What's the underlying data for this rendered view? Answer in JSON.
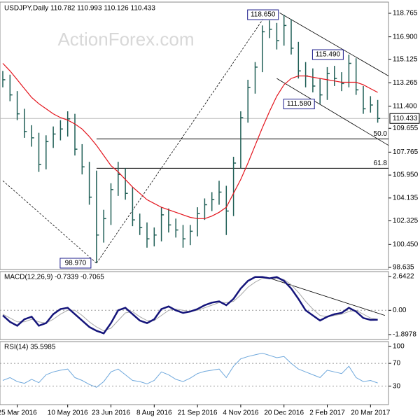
{
  "chart_data": [
    {
      "type": "ohlc",
      "title": "USDJPY,Daily  110.782 110.993 110.126 110.433",
      "watermark": "ActionForex.com",
      "color": "#1e5e55",
      "categories": [
        null,
        null,
        "25 Mar 2016",
        null,
        null,
        null,
        null,
        null,
        null,
        "10 May 2016",
        null,
        null,
        null,
        null,
        null,
        "23 Jun 2016",
        null,
        null,
        null,
        null,
        null,
        "8 Aug 2016",
        null,
        null,
        null,
        null,
        null,
        "21 Sep 2016",
        null,
        null,
        null,
        null,
        null,
        "4 Nov 2016",
        null,
        null,
        null,
        null,
        null,
        "20 Dec 2016",
        null,
        null,
        null,
        null,
        null,
        "2 Feb 2017",
        null,
        null,
        null,
        null,
        null,
        "20 Mar 2017",
        null
      ],
      "high": [
        114.2,
        113.9,
        112.6,
        111.2,
        109.9,
        109.3,
        109.1,
        109.8,
        110.3,
        111.0,
        110.8,
        108.4,
        107.0,
        106.3,
        103.2,
        105.3,
        107.0,
        106.5,
        105.0,
        102.9,
        102.2,
        101.8,
        103.4,
        103.3,
        102.5,
        102.0,
        102.0,
        103.4,
        104.1,
        104.6,
        105.5,
        105.1,
        107.4,
        111.0,
        113.5,
        114.9,
        117.8,
        118.2,
        118.0,
        118.65,
        118.3,
        116.5,
        114.9,
        114.4,
        113.6,
        114.5,
        114.6,
        114.1,
        115.49,
        115.2,
        113.0,
        112.2,
        111.9
      ],
      "low": [
        112.9,
        111.8,
        110.3,
        108.9,
        108.2,
        106.2,
        106.4,
        108.1,
        108.7,
        109.0,
        107.5,
        106.0,
        103.6,
        98.97,
        100.6,
        102.0,
        104.3,
        104.0,
        101.9,
        101.2,
        100.2,
        100.3,
        100.7,
        101.4,
        101.0,
        100.2,
        100.4,
        101.1,
        102.4,
        103.1,
        103.6,
        101.2,
        102.7,
        106.5,
        110.1,
        112.4,
        114.1,
        116.8,
        115.9,
        116.2,
        115.5,
        113.6,
        112.9,
        112.5,
        111.58,
        111.9,
        113.0,
        112.6,
        112.9,
        112.3,
        110.8,
        110.9,
        110.1
      ],
      "close": [
        113.5,
        112.3,
        110.8,
        109.4,
        108.9,
        106.8,
        108.6,
        109.2,
        109.6,
        110.4,
        108.0,
        106.6,
        104.2,
        101.2,
        102.5,
        104.8,
        106.0,
        104.5,
        102.4,
        101.8,
        100.9,
        101.2,
        102.8,
        102.0,
        101.6,
        100.9,
        101.5,
        102.9,
        103.6,
        104.0,
        104.6,
        103.1,
        106.9,
        110.5,
        112.9,
        114.5,
        117.3,
        117.5,
        116.6,
        117.8,
        116.0,
        114.2,
        113.8,
        113.0,
        112.3,
        114.0,
        113.6,
        113.2,
        114.8,
        112.7,
        111.2,
        111.5,
        110.433
      ],
      "overlays": [
        {
          "color": "#e3141c",
          "values": [
            114.8,
            114.2,
            113.5,
            112.8,
            112.1,
            111.6,
            111.2,
            110.8,
            110.5,
            110.3,
            110.0,
            109.6,
            109.0,
            108.3,
            107.5,
            106.7,
            106.2,
            105.6,
            105.0,
            104.5,
            104.0,
            103.7,
            103.4,
            103.2,
            103.0,
            102.8,
            102.6,
            102.5,
            102.5,
            102.7,
            103.0,
            103.4,
            104.5,
            105.6,
            106.9,
            108.3,
            109.7,
            111.0,
            112.2,
            113.1,
            113.6,
            113.8,
            113.8,
            113.7,
            113.6,
            113.5,
            113.4,
            113.3,
            113.3,
            113.3,
            113.1,
            112.8,
            112.5
          ]
        }
      ],
      "last_price": 110.433,
      "annotations": [
        {
          "label": "118.650",
          "x": 39,
          "value": 118.65
        },
        {
          "label": "115.490",
          "x": 48,
          "value": 115.49
        },
        {
          "label": "111.580",
          "x": 44,
          "value": 111.58
        },
        {
          "label": "98.970",
          "x": 13,
          "value": 98.97
        }
      ],
      "fib_levels": [
        {
          "label": "50.0",
          "value": 108.81,
          "from": 13
        },
        {
          "label": "61.8",
          "value": 106.49,
          "from": 13
        }
      ],
      "trendlines": [
        {
          "x": [
            0,
            13
          ],
          "y": [
            105.5,
            98.97
          ],
          "dashed": true
        },
        {
          "x": [
            13,
            36.5
          ],
          "y": [
            98.97,
            118.65
          ],
          "dashed": true
        },
        {
          "x": [
            38.4,
            53.5
          ],
          "y": [
            118.8,
            113.8
          ],
          "dashed": false
        },
        {
          "x": [
            38,
            53.5
          ],
          "y": [
            113.6,
            108.3
          ],
          "dashed": false
        }
      ],
      "ylim": [
        98.47,
        119.54
      ],
      "yticks": [
        118.765,
        {
          "value": 116.9,
          "label": "116.900"
        },
        115.125,
        113.265,
        {
          "value": 111.4,
          "label": "111.400"
        },
        109.655,
        107.765,
        {
          "value": 105.95,
          "label": "105.950"
        },
        104.135,
        102.325,
        {
          "value": 100.45,
          "label": "100.450"
        },
        98.635
      ]
    },
    {
      "type": "line",
      "title": "MACD(12,26,9) -0.7339 -0.7065",
      "series": [
        {
          "color": "#14147a",
          "width": 2.5,
          "values": [
            -0.4,
            -0.9,
            -1.2,
            -0.7,
            -0.5,
            -1.2,
            -1.0,
            -0.3,
            0.1,
            0.2,
            -0.3,
            -0.8,
            -1.3,
            -1.6,
            -1.8,
            -1.0,
            0.0,
            0.2,
            -0.3,
            -0.8,
            -1.0,
            -0.7,
            0.1,
            0.3,
            0.0,
            -0.2,
            -0.1,
            0.1,
            0.4,
            0.6,
            0.7,
            0.4,
            0.9,
            1.7,
            2.3,
            2.6,
            2.6,
            2.5,
            2.6,
            2.3,
            1.7,
            0.9,
            0.0,
            -0.4,
            -0.8,
            -0.5,
            -0.3,
            -0.2,
            0.2,
            -0.1,
            -0.6,
            -0.75,
            -0.7339
          ]
        },
        {
          "color": "#a8a8a8",
          "width": 1,
          "values": [
            -0.3,
            -0.6,
            -0.9,
            -0.9,
            -0.7,
            -0.9,
            -1.0,
            -0.7,
            -0.3,
            0.0,
            0.0,
            -0.4,
            -0.9,
            -1.3,
            -1.6,
            -1.4,
            -0.8,
            -0.2,
            -0.1,
            -0.5,
            -0.8,
            -0.8,
            -0.4,
            0.0,
            0.1,
            0.0,
            -0.1,
            0.0,
            0.2,
            0.4,
            0.6,
            0.6,
            0.7,
            1.2,
            1.8,
            2.2,
            2.5,
            2.5,
            2.5,
            2.4,
            2.0,
            1.4,
            0.7,
            0.1,
            -0.4,
            -0.5,
            -0.4,
            -0.3,
            -0.1,
            0.0,
            -0.3,
            -0.6,
            -0.7065
          ]
        }
      ],
      "trendlines": [
        {
          "x": [
            36.5,
            53
          ],
          "y": [
            2.6,
            -0.4
          ],
          "dashed": false
        }
      ],
      "ylim": [
        -2.28,
        2.97
      ],
      "yticks": [
        2.6422,
        {
          "value": 0,
          "label": "0.00"
        },
        -1.8978
      ],
      "grid_ticks": [
        1
      ]
    },
    {
      "type": "line",
      "title": "RSI(14) 35.5985",
      "series": [
        {
          "color": "#6fa8dc",
          "width": 1,
          "values": [
            40,
            45,
            38,
            35,
            42,
            36,
            50,
            55,
            58,
            60,
            45,
            40,
            33,
            28,
            38,
            55,
            60,
            50,
            40,
            38,
            34,
            40,
            55,
            50,
            42,
            38,
            44,
            52,
            56,
            58,
            60,
            45,
            65,
            78,
            82,
            85,
            88,
            84,
            80,
            82,
            70,
            60,
            55,
            50,
            45,
            58,
            55,
            52,
            65,
            45,
            38,
            40,
            35.5985
          ]
        }
      ],
      "ylim": [
        -1.2,
        107
      ],
      "yticks": [
        100,
        70,
        30
      ],
      "grid_ticks": [
        1,
        2
      ]
    }
  ]
}
